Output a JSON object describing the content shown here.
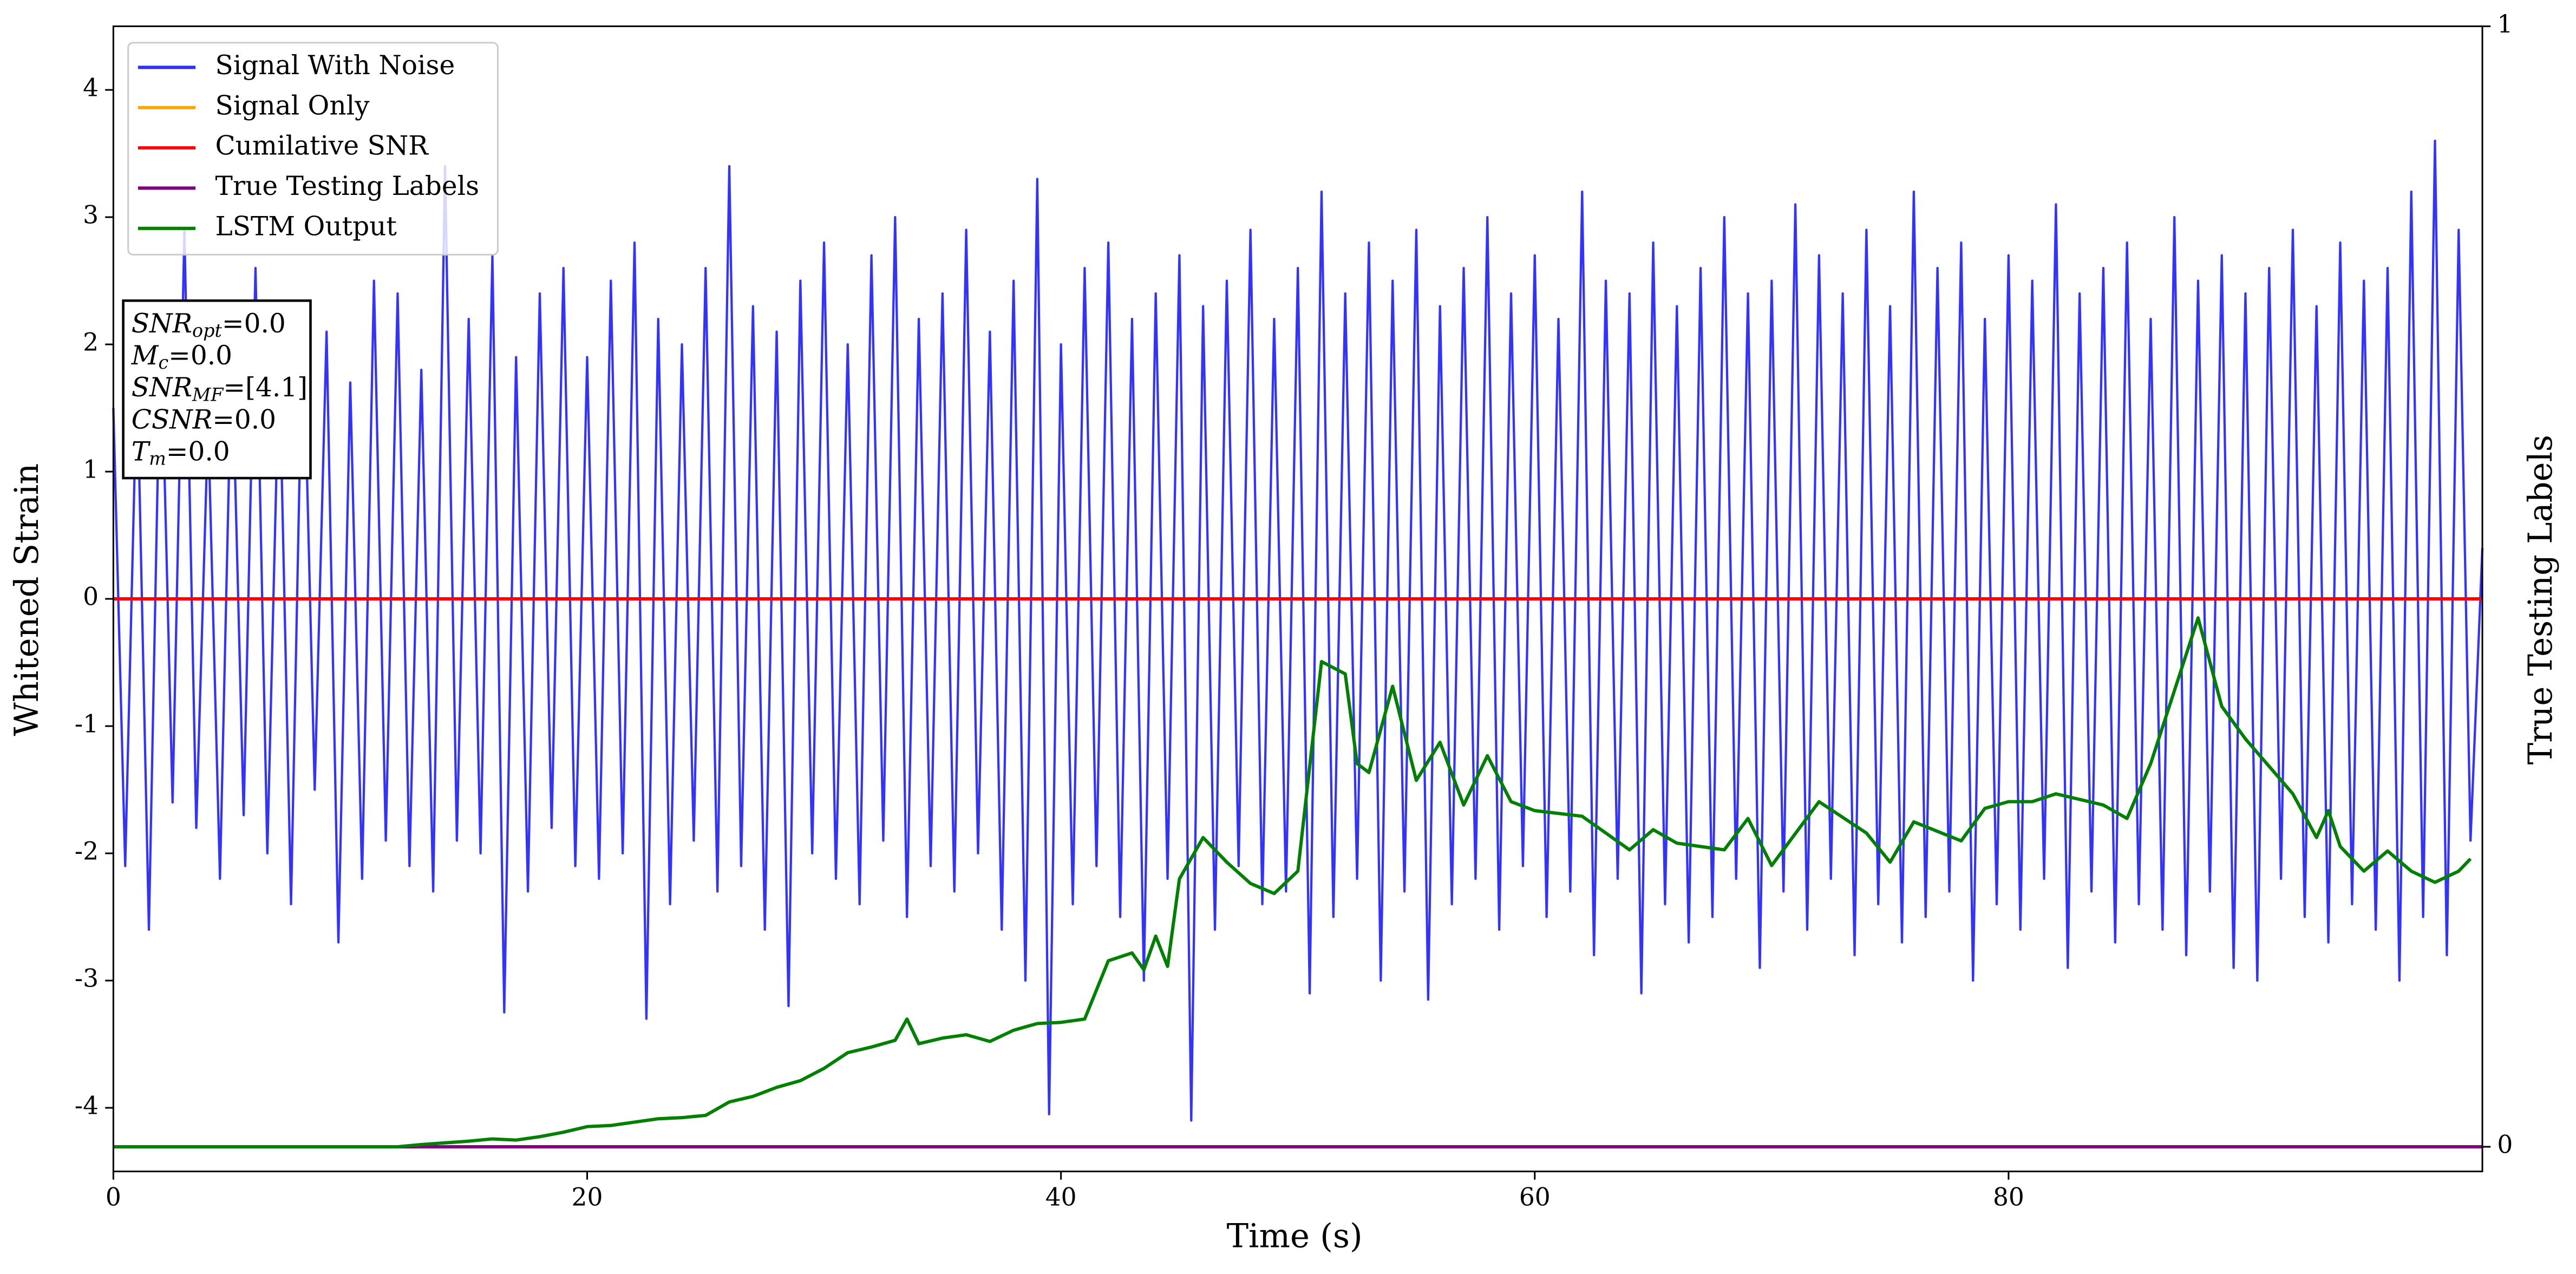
{
  "chart_data": {
    "type": "line",
    "xlabel": "Time (s)",
    "ylabel": "Whitened Strain",
    "y2label": "True Testing Labels",
    "xlim": [
      0,
      100
    ],
    "xticks": [
      0,
      20,
      40,
      60,
      80
    ],
    "ylim": [
      -4.5,
      4.5
    ],
    "yticks": [
      -4,
      -3,
      -2,
      -1,
      0,
      1,
      2,
      3,
      4
    ],
    "y2lim": [
      -0.022,
      1
    ],
    "y2ticks": [
      0,
      1
    ],
    "legend": "upper left",
    "annotation": [
      {
        "name": "SNR",
        "sub": "opt",
        "text": "=0.0"
      },
      {
        "name": "M",
        "sub": "c",
        "text": "=0.0"
      },
      {
        "name": "SNR",
        "sub": "MF",
        "text": "=[4.1]"
      },
      {
        "name": "CSNR",
        "sub": null,
        "text": "=0.0"
      },
      {
        "name": "T",
        "sub": "m",
        "text": "=0.0"
      }
    ],
    "series": [
      {
        "name": "Signal With Noise",
        "color": "#2f2fff",
        "axis": "y",
        "x": [
          0,
          0.5,
          1,
          1.5,
          2,
          2.5,
          3,
          3.5,
          4,
          4.5,
          5,
          5.5,
          6,
          6.5,
          7,
          7.5,
          8,
          8.5,
          9,
          9.5,
          10,
          10.5,
          11,
          11.5,
          12,
          12.5,
          13,
          13.5,
          14,
          14.5,
          15,
          15.5,
          16,
          16.5,
          17,
          17.5,
          18,
          18.5,
          19,
          19.5,
          20,
          20.5,
          21,
          21.5,
          22,
          22.5,
          23,
          23.5,
          24,
          24.5,
          25,
          25.5,
          26,
          26.5,
          27,
          27.5,
          28,
          28.5,
          29,
          29.5,
          30,
          30.5,
          31,
          31.5,
          32,
          32.5,
          33,
          33.5,
          34,
          34.5,
          35,
          35.5,
          36,
          36.5,
          37,
          37.5,
          38,
          38.5,
          39,
          39.5,
          40,
          40.5,
          41,
          41.5,
          42,
          42.5,
          43,
          43.5,
          44,
          44.5,
          45,
          45.5,
          46,
          46.5,
          47,
          47.5,
          48,
          48.5,
          49,
          49.5,
          50,
          50.5,
          51,
          51.5,
          52,
          52.5,
          53,
          53.5,
          54,
          54.5,
          55,
          55.5,
          56,
          56.5,
          57,
          57.5,
          58,
          58.5,
          59,
          59.5,
          60,
          60.5,
          61,
          61.5,
          62,
          62.5,
          63,
          63.5,
          64,
          64.5,
          65,
          65.5,
          66,
          66.5,
          67,
          67.5,
          68,
          68.5,
          69,
          69.5,
          70,
          70.5,
          71,
          71.5,
          72,
          72.5,
          73,
          73.5,
          74,
          74.5,
          75,
          75.5,
          76,
          76.5,
          77,
          77.5,
          78,
          78.5,
          79,
          79.5,
          80,
          80.5,
          81,
          81.5,
          82,
          82.5,
          83,
          83.5,
          84,
          84.5,
          85,
          85.5,
          86,
          86.5,
          87,
          87.5,
          88,
          88.5,
          89,
          89.5,
          90,
          90.5,
          91,
          91.5,
          92,
          92.5,
          93,
          93.5,
          94,
          94.5,
          95,
          95.5,
          96,
          96.5,
          97,
          97.5,
          98,
          98.5,
          99,
          99.5,
          100
        ],
        "values": [
          1.5,
          -2.1,
          1.8,
          -2.6,
          2.2,
          -1.6,
          2.9,
          -1.8,
          1.4,
          -2.2,
          2.0,
          -1.7,
          2.6,
          -2.0,
          1.9,
          -2.4,
          2.3,
          -1.5,
          2.1,
          -2.7,
          1.7,
          -2.2,
          2.5,
          -1.9,
          2.4,
          -2.1,
          1.8,
          -2.3,
          3.4,
          -1.9,
          2.2,
          -2.0,
          2.7,
          -3.25,
          1.9,
          -2.3,
          2.4,
          -1.8,
          2.6,
          -2.1,
          1.9,
          -2.2,
          2.5,
          -2.0,
          2.8,
          -3.3,
          2.2,
          -2.4,
          2.0,
          -1.9,
          2.6,
          -2.3,
          3.4,
          -2.1,
          2.3,
          -2.6,
          2.1,
          -3.2,
          2.5,
          -2.0,
          2.8,
          -2.2,
          2.0,
          -2.4,
          2.7,
          -1.9,
          3.0,
          -2.5,
          2.2,
          -2.1,
          2.4,
          -2.3,
          2.9,
          -2.0,
          2.1,
          -2.6,
          2.5,
          -3.0,
          3.3,
          -4.05,
          2.0,
          -2.4,
          2.6,
          -2.1,
          2.8,
          -2.5,
          2.2,
          -3.0,
          2.4,
          -2.2,
          2.7,
          -4.1,
          2.3,
          -2.6,
          2.5,
          -2.1,
          2.9,
          -2.4,
          2.2,
          -2.3,
          2.6,
          -3.1,
          3.2,
          -2.5,
          2.4,
          -2.2,
          2.8,
          -3.0,
          2.5,
          -2.3,
          2.9,
          -3.15,
          2.3,
          -2.4,
          2.6,
          -2.2,
          3.0,
          -2.6,
          2.4,
          -2.1,
          2.7,
          -2.5,
          2.2,
          -2.3,
          3.2,
          -2.8,
          2.5,
          -2.2,
          2.4,
          -3.1,
          2.8,
          -2.4,
          2.3,
          -2.7,
          2.6,
          -2.5,
          3.0,
          -2.2,
          2.4,
          -2.9,
          2.5,
          -2.3,
          3.1,
          -2.6,
          2.7,
          -2.2,
          2.4,
          -2.8,
          2.9,
          -2.4,
          2.3,
          -2.7,
          3.2,
          -2.5,
          2.6,
          -2.3,
          2.8,
          -3.0,
          2.2,
          -2.4,
          2.7,
          -2.6,
          2.5,
          -2.2,
          3.1,
          -2.9,
          2.4,
          -2.3,
          2.6,
          -2.7,
          2.8,
          -2.4,
          2.2,
          -2.6,
          3.0,
          -2.8,
          2.5,
          -2.3,
          2.7,
          -2.9,
          2.4,
          -3.0,
          2.6,
          -2.2,
          2.9,
          -2.5,
          2.3,
          -2.7,
          2.8,
          -2.4,
          2.5,
          -2.6,
          2.6,
          -3.0,
          3.2,
          -2.5,
          3.6,
          -2.8,
          2.9,
          -1.9,
          0.4
        ]
      },
      {
        "name": "Signal Only",
        "color": "#ffa500",
        "axis": "y",
        "x": [
          0,
          100
        ],
        "values": [
          0,
          0
        ]
      },
      {
        "name": "Cumilative SNR",
        "color": "#ff0000",
        "axis": "y",
        "x": [
          0,
          100
        ],
        "values": [
          0,
          0
        ]
      },
      {
        "name": "True Testing Labels",
        "color": "#800080",
        "axis": "y2",
        "x": [
          0,
          100
        ],
        "values": [
          0,
          0
        ]
      },
      {
        "name": "LSTM Output",
        "color": "#008000",
        "axis": "y2",
        "x": [
          0,
          12,
          13,
          15,
          16,
          17,
          18,
          19,
          20,
          21,
          22,
          23,
          24,
          25,
          26,
          27,
          28,
          29,
          30,
          31,
          32,
          33,
          33.5,
          34,
          35,
          36,
          37,
          38,
          39,
          40,
          41,
          42,
          43,
          43.5,
          44,
          44.5,
          45,
          46,
          47,
          48,
          49,
          50,
          51,
          52,
          52.5,
          53,
          54,
          55,
          56,
          57,
          58,
          59,
          60,
          62,
          64,
          65,
          66,
          68,
          69,
          70,
          72,
          74,
          75,
          76,
          78,
          79,
          80,
          81,
          82,
          84,
          85,
          86,
          88,
          89,
          90,
          92,
          93,
          93.5,
          94,
          95,
          96,
          97,
          98,
          99,
          99.5
        ],
        "values": [
          0,
          0,
          0.002,
          0.005,
          0.007,
          0.006,
          0.009,
          0.013,
          0.018,
          0.019,
          0.022,
          0.025,
          0.026,
          0.028,
          0.04,
          0.045,
          0.053,
          0.059,
          0.07,
          0.084,
          0.089,
          0.095,
          0.114,
          0.092,
          0.097,
          0.1,
          0.094,
          0.104,
          0.11,
          0.111,
          0.114,
          0.166,
          0.173,
          0.158,
          0.188,
          0.161,
          0.239,
          0.276,
          0.254,
          0.235,
          0.226,
          0.246,
          0.433,
          0.422,
          0.342,
          0.334,
          0.411,
          0.327,
          0.361,
          0.305,
          0.349,
          0.308,
          0.3,
          0.295,
          0.265,
          0.283,
          0.271,
          0.265,
          0.293,
          0.251,
          0.308,
          0.28,
          0.254,
          0.29,
          0.273,
          0.302,
          0.308,
          0.308,
          0.315,
          0.305,
          0.293,
          0.342,
          0.472,
          0.393,
          0.364,
          0.315,
          0.276,
          0.3,
          0.268,
          0.246,
          0.264,
          0.246,
          0.236,
          0.246,
          0.257
        ]
      }
    ]
  }
}
